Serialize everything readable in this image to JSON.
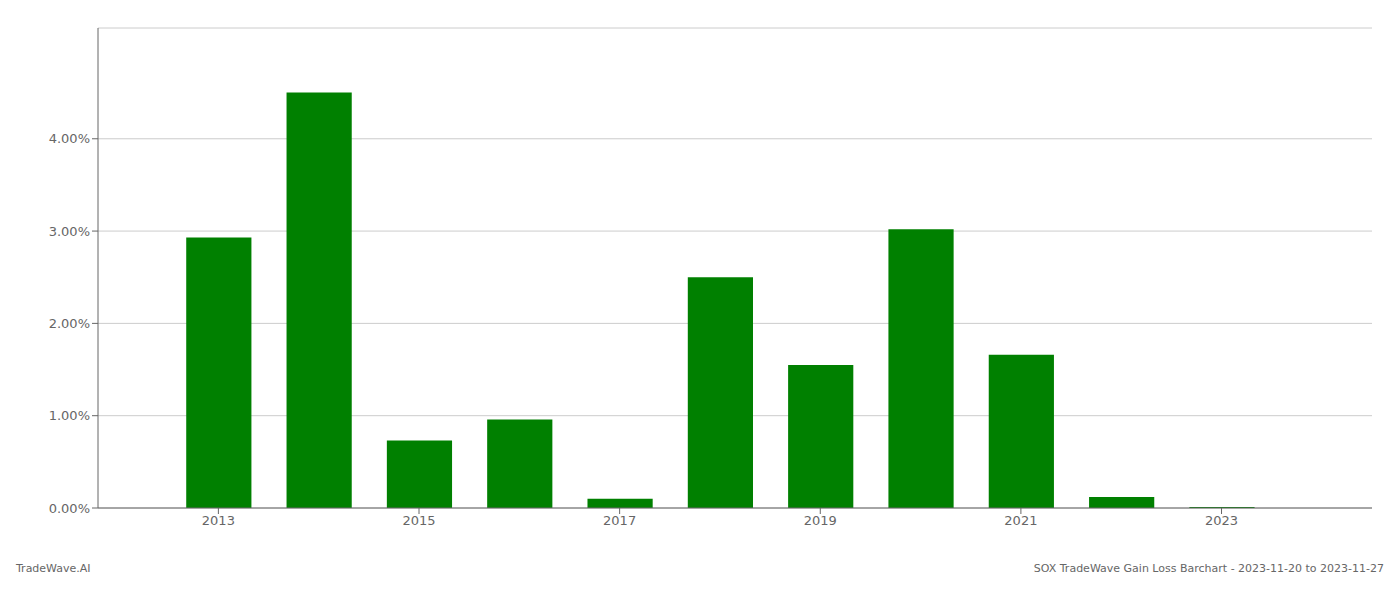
{
  "chart_data": {
    "type": "bar",
    "x": [
      2013,
      2014,
      2015,
      2016,
      2017,
      2018,
      2019,
      2020,
      2021,
      2022,
      2023
    ],
    "values": [
      0.0293,
      0.045,
      0.0073,
      0.0096,
      0.001,
      0.025,
      0.0155,
      0.0302,
      0.0166,
      0.0012,
      0.0001
    ],
    "color": "#008000",
    "xlim": [
      2011.8,
      2024.5
    ],
    "xticks": [
      2013,
      2015,
      2017,
      2019,
      2021,
      2023
    ],
    "ylim": [
      0,
      0.052
    ],
    "yticks": [
      {
        "value": 0.0,
        "label": "0.00%"
      },
      {
        "value": 0.01,
        "label": "1.00%"
      },
      {
        "value": 0.02,
        "label": "2.00%"
      },
      {
        "value": 0.03,
        "label": "3.00%"
      },
      {
        "value": 0.04,
        "label": "4.00%"
      }
    ],
    "grid": "y",
    "annotations": [
      "TradeWave.AI",
      "SOX TradeWave Gain Loss Barchart - 2023-11-20 to 2023-11-27"
    ]
  }
}
